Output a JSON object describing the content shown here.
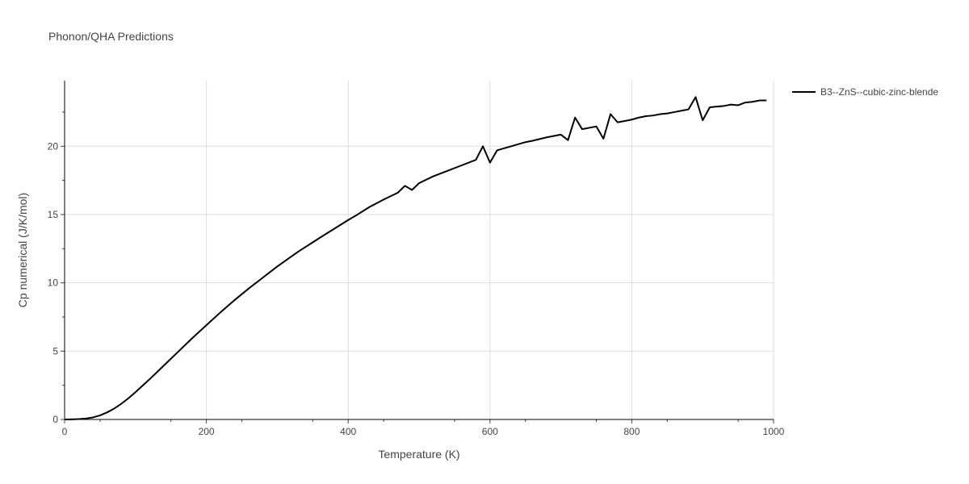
{
  "chart_data": {
    "type": "line",
    "title": "Phonon/QHA Predictions",
    "xlabel": "Temperature (K)",
    "ylabel": "Cp numerical (J/K/mol)",
    "xlim": [
      0,
      1000
    ],
    "ylim": [
      0,
      24.8
    ],
    "xticks": [
      0,
      200,
      400,
      600,
      800,
      1000
    ],
    "yticks": [
      0,
      5,
      10,
      15,
      20
    ],
    "grid": true,
    "legend_position": "top-right",
    "series": [
      {
        "name": "B3--ZnS--cubic-zinc-blende",
        "color": "#000000",
        "x": [
          0,
          10,
          20,
          30,
          40,
          50,
          60,
          70,
          80,
          90,
          100,
          120,
          140,
          160,
          180,
          200,
          220,
          240,
          260,
          280,
          300,
          330,
          360,
          380,
          400,
          410,
          430,
          450,
          470,
          480,
          490,
          500,
          520,
          540,
          560,
          580,
          590,
          600,
          610,
          620,
          630,
          650,
          660,
          680,
          700,
          710,
          720,
          730,
          740,
          750,
          760,
          770,
          780,
          790,
          800,
          810,
          820,
          830,
          840,
          850,
          860,
          870,
          880,
          890,
          900,
          910,
          920,
          930,
          940,
          950,
          960,
          970,
          980,
          990
        ],
        "y": [
          0.0,
          0.01,
          0.03,
          0.07,
          0.15,
          0.3,
          0.52,
          0.8,
          1.15,
          1.55,
          2.0,
          2.95,
          3.95,
          4.95,
          5.95,
          6.9,
          7.85,
          8.75,
          9.6,
          10.4,
          11.2,
          12.3,
          13.3,
          13.95,
          14.6,
          14.9,
          15.55,
          16.1,
          16.6,
          17.1,
          16.8,
          17.3,
          17.8,
          18.2,
          18.6,
          19.0,
          20.0,
          18.8,
          19.7,
          19.85,
          20.0,
          20.3,
          20.4,
          20.65,
          20.85,
          20.45,
          22.1,
          21.25,
          21.35,
          21.45,
          20.55,
          22.35,
          21.75,
          21.85,
          21.95,
          22.1,
          22.2,
          22.25,
          22.35,
          22.4,
          22.5,
          22.6,
          22.7,
          23.6,
          21.9,
          22.85,
          22.9,
          22.95,
          23.05,
          23.0,
          23.2,
          23.25,
          23.35,
          23.35
        ]
      }
    ]
  }
}
